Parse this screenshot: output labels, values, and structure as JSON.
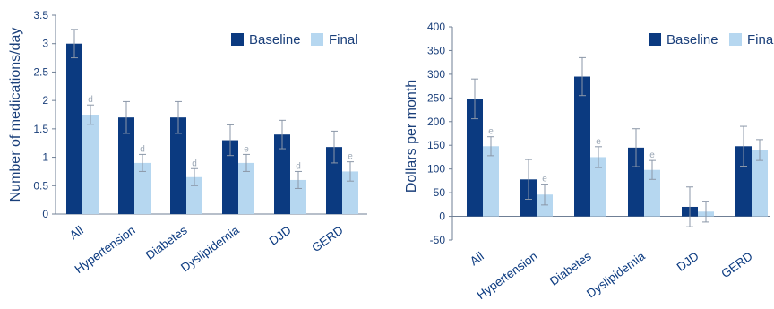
{
  "chart_data": [
    {
      "type": "bar",
      "ylabel": "Number of medications/day",
      "xlabel": "",
      "ylim": [
        0,
        3.5
      ],
      "yticks": [
        "0",
        "0.5",
        "1",
        "1.5",
        "2",
        "2.5",
        "3",
        "3.5"
      ],
      "legend_position": "top-right",
      "categories": [
        "All",
        "Hypertension",
        "Diabetes",
        "Dyslipidemia",
        "DJD",
        "GERD"
      ],
      "series": [
        {
          "name": "Baseline",
          "color": "#0b3a80",
          "values": [
            3.0,
            1.7,
            1.7,
            1.3,
            1.4,
            1.18
          ],
          "err": [
            0.25,
            0.28,
            0.28,
            0.27,
            0.25,
            0.28
          ],
          "annotations": [
            "",
            "",
            "",
            "",
            "",
            ""
          ]
        },
        {
          "name": "Final",
          "color": "#b6d7f0",
          "values": [
            1.75,
            0.9,
            0.65,
            0.9,
            0.6,
            0.75
          ],
          "err": [
            0.17,
            0.15,
            0.15,
            0.15,
            0.15,
            0.17
          ],
          "annotations": [
            "d",
            "d",
            "d",
            "e",
            "d",
            "e"
          ]
        }
      ]
    },
    {
      "type": "bar",
      "ylabel": "Dollars per month",
      "xlabel": "",
      "ylim": [
        -50,
        400
      ],
      "yticks": [
        "-50",
        "0",
        "50",
        "100",
        "150",
        "200",
        "250",
        "300",
        "350",
        "400"
      ],
      "legend_position": "top-right",
      "categories": [
        "All",
        "Hypertension",
        "Diabetes",
        "Dyslipidemia",
        "DJD",
        "GERD"
      ],
      "series": [
        {
          "name": "Baseline",
          "color": "#0b3a80",
          "values": [
            248,
            78,
            295,
            145,
            20,
            148
          ],
          "err": [
            42,
            42,
            40,
            40,
            42,
            42
          ],
          "annotations": [
            "",
            "",
            "",
            "",
            "",
            ""
          ]
        },
        {
          "name": "Final",
          "color": "#b6d7f0",
          "values": [
            148,
            46,
            125,
            98,
            10,
            140
          ],
          "err": [
            20,
            22,
            22,
            20,
            22,
            22
          ],
          "annotations": [
            "e",
            "e",
            "e",
            "e",
            "",
            ""
          ]
        }
      ]
    }
  ]
}
